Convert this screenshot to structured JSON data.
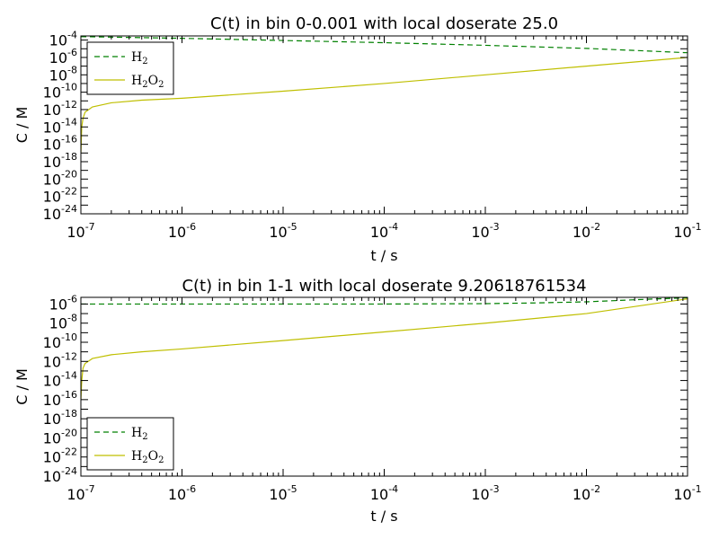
{
  "chart_data": [
    {
      "type": "line",
      "title": "C(t) in bin 0-0.001 with local doserate 25.0",
      "xlabel": "t / s",
      "ylabel": "C / M",
      "xscale": "log",
      "yscale": "log",
      "xlim": [
        1e-07,
        0.1
      ],
      "ylim": [
        1e-24,
        0.0003
      ],
      "x_ticks": [
        {
          "base": "10",
          "exp": "-7"
        },
        {
          "base": "10",
          "exp": "-6"
        },
        {
          "base": "10",
          "exp": "-5"
        },
        {
          "base": "10",
          "exp": "-4"
        },
        {
          "base": "10",
          "exp": "-3"
        },
        {
          "base": "10",
          "exp": "-2"
        },
        {
          "base": "10",
          "exp": "-1"
        }
      ],
      "y_ticks": [
        {
          "base": "10",
          "exp": "-24"
        },
        {
          "base": "10",
          "exp": "-22"
        },
        {
          "base": "10",
          "exp": "-20"
        },
        {
          "base": "10",
          "exp": "-18"
        },
        {
          "base": "10",
          "exp": "-16"
        },
        {
          "base": "10",
          "exp": "-14"
        },
        {
          "base": "10",
          "exp": "-12"
        },
        {
          "base": "10",
          "exp": "-10"
        },
        {
          "base": "10",
          "exp": "-8"
        },
        {
          "base": "10",
          "exp": "-6"
        },
        {
          "base": "10",
          "exp": "-4"
        }
      ],
      "grid": false,
      "legend": "upper-left",
      "series": [
        {
          "label_main": "H",
          "label_sub": "2",
          "label_tail": "",
          "label_sub2": "",
          "color": "#008000",
          "style": "dashed",
          "x": [
            1e-07,
            1e-06,
            1e-05,
            0.0001,
            0.001,
            0.01,
            0.1
          ],
          "y": [
            0.00025,
            0.00016,
            9e-05,
            5e-05,
            2.5e-05,
            1.1e-05,
            3.5e-06
          ]
        },
        {
          "label_main": "H",
          "label_sub": "2",
          "label_tail": "O",
          "label_sub2": "2",
          "color": "#bfbf00",
          "style": "solid",
          "x": [
            1e-07,
            1.02e-07,
            1.05e-07,
            1.1e-07,
            1.3e-07,
            2e-07,
            4e-07,
            1e-06,
            1e-05,
            0.0001,
            0.001,
            0.01,
            0.1
          ],
          "y": [
            1e-17,
            1e-14,
            1e-13,
            5e-13,
            2e-12,
            6e-12,
            1.2e-11,
            2e-11,
            1.3e-10,
            1e-09,
            1e-08,
            1e-07,
            1e-06
          ]
        }
      ]
    },
    {
      "type": "line",
      "title": "C(t) in bin 1-1 with local doserate 9.20618761534",
      "xlabel": "t / s",
      "ylabel": "C / M",
      "xscale": "log",
      "yscale": "log",
      "xlim": [
        1e-07,
        0.1
      ],
      "ylim": [
        1e-24,
        5e-06
      ],
      "x_ticks": [
        {
          "base": "10",
          "exp": "-7"
        },
        {
          "base": "10",
          "exp": "-6"
        },
        {
          "base": "10",
          "exp": "-5"
        },
        {
          "base": "10",
          "exp": "-4"
        },
        {
          "base": "10",
          "exp": "-3"
        },
        {
          "base": "10",
          "exp": "-2"
        },
        {
          "base": "10",
          "exp": "-1"
        }
      ],
      "y_ticks": [
        {
          "base": "10",
          "exp": "-24"
        },
        {
          "base": "10",
          "exp": "-22"
        },
        {
          "base": "10",
          "exp": "-20"
        },
        {
          "base": "10",
          "exp": "-18"
        },
        {
          "base": "10",
          "exp": "-16"
        },
        {
          "base": "10",
          "exp": "-14"
        },
        {
          "base": "10",
          "exp": "-12"
        },
        {
          "base": "10",
          "exp": "-10"
        },
        {
          "base": "10",
          "exp": "-8"
        },
        {
          "base": "10",
          "exp": "-6"
        }
      ],
      "grid": false,
      "legend": "lower-left",
      "series": [
        {
          "label_main": "H",
          "label_sub": "2",
          "label_tail": "",
          "label_sub2": "",
          "color": "#008000",
          "style": "dashed",
          "x": [
            1e-07,
            1e-06,
            1e-05,
            0.0001,
            0.001,
            0.003,
            0.01,
            0.03,
            0.1
          ],
          "y": [
            1e-06,
            1e-06,
            1e-06,
            1e-06,
            1.1e-06,
            1.3e-06,
            1.7e-06,
            2.8e-06,
            4.6e-06
          ]
        },
        {
          "label_main": "H",
          "label_sub": "2",
          "label_tail": "O",
          "label_sub2": "2",
          "color": "#bfbf00",
          "style": "solid",
          "x": [
            1e-07,
            1.02e-07,
            1.05e-07,
            1.1e-07,
            1.3e-07,
            2e-07,
            4e-07,
            1e-06,
            1e-05,
            0.0001,
            0.001,
            0.01,
            0.1
          ],
          "y": [
            1e-16,
            1e-14,
            2e-13,
            6e-13,
            2e-12,
            5e-12,
            1e-11,
            2e-11,
            1.5e-10,
            1.2e-09,
            1e-08,
            1e-07,
            3.5e-06
          ]
        }
      ]
    }
  ]
}
